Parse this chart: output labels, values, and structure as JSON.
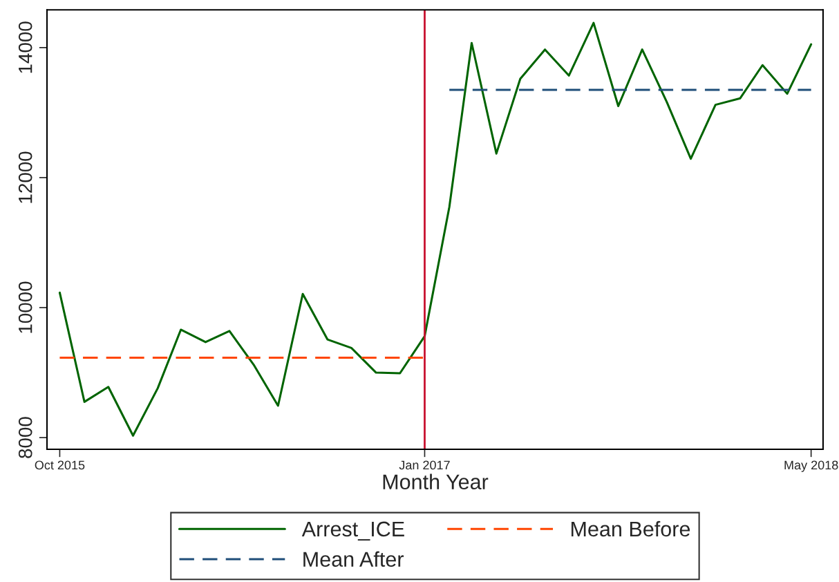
{
  "chart_data": {
    "type": "line",
    "xlabel": "Month Year",
    "x": [
      "2015-10",
      "2015-11",
      "2015-12",
      "2016-01",
      "2016-02",
      "2016-03",
      "2016-04",
      "2016-05",
      "2016-06",
      "2016-07",
      "2016-08",
      "2016-09",
      "2016-10",
      "2016-11",
      "2016-12",
      "2017-01",
      "2017-02",
      "2017-03",
      "2017-04",
      "2017-05",
      "2017-06",
      "2017-07",
      "2017-08",
      "2017-09",
      "2017-10",
      "2017-11",
      "2017-12",
      "2018-01",
      "2018-02",
      "2018-03",
      "2018-04",
      "2018-05"
    ],
    "series": [
      {
        "name": "Arrest_ICE",
        "color": "#006400",
        "line_style": "solid",
        "values": [
          10230,
          8550,
          8780,
          8030,
          8760,
          9660,
          9470,
          9640,
          9110,
          8490,
          10210,
          9510,
          9380,
          9000,
          8990,
          9560,
          11550,
          14070,
          12370,
          13520,
          13970,
          13570,
          14380,
          13100,
          13970,
          13160,
          12290,
          13120,
          13220,
          13730,
          13290,
          14050
        ]
      },
      {
        "name": "Mean Before",
        "color": "#ff4500",
        "line_style": "dashed",
        "x": [
          "2015-10",
          "2017-01"
        ],
        "values": [
          9230,
          9230
        ]
      },
      {
        "name": "Mean After",
        "color": "#1f4e79",
        "line_style": "dashed",
        "x": [
          "2017-02",
          "2018-05"
        ],
        "values": [
          13350,
          13350
        ]
      }
    ],
    "ref_lines": [
      {
        "axis": "x",
        "value": "2017-01",
        "color": "#c8102e",
        "line_style": "solid"
      }
    ],
    "xlim": [
      "2015-09-15",
      "2018-05-16"
    ],
    "xticks": [
      {
        "value": "2015-10",
        "label": "Oct 2015"
      },
      {
        "value": "2017-01",
        "label": "Jan 2017"
      },
      {
        "value": "2018-05",
        "label": "May 2018"
      }
    ],
    "ylim": [
      7820,
      14580
    ],
    "yticks": [
      8000,
      10000,
      12000,
      14000
    ],
    "grid": false,
    "legend": "bottom"
  }
}
